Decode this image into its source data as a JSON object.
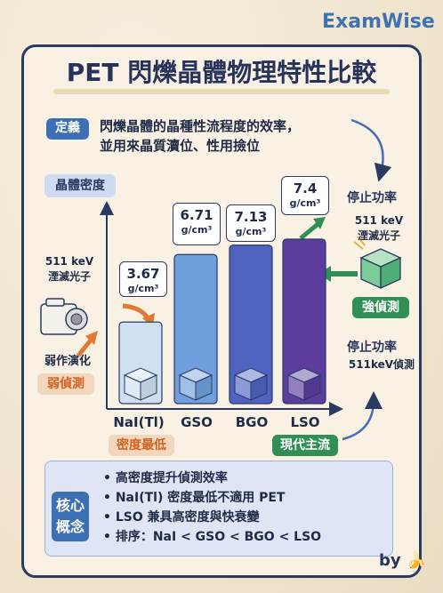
{
  "brand": "ExamWise",
  "title": "PET 閃爍晶體物理特性比較",
  "definition": {
    "tag": "定義",
    "line1": "閃爍晶體的晶種性流程度的效率，",
    "line2": "並用來晶質瀆位、性用撿位"
  },
  "axis_label": "晶體密度",
  "chart_data": {
    "type": "bar",
    "categories": [
      "NaI(Tl)",
      "GSO",
      "BGO",
      "LSO"
    ],
    "values": [
      3.67,
      6.71,
      7.13,
      7.4
    ],
    "unit": "g/cm³",
    "ylabel": "晶體密度",
    "colors": [
      "#cfe0f3",
      "#6f9fdc",
      "#4f63c0",
      "#5b3d9e"
    ]
  },
  "left_side": {
    "photon_line1": "511 keV",
    "photon_line2": "湮滅光子",
    "weak_text": "弱作演化",
    "weak_tag": "弱偵測"
  },
  "right_side": {
    "stop_power": "停止功率",
    "photon_line1": "511 keV",
    "photon_line2": "湮滅光子",
    "strong_tag": "強偵測",
    "stop_power2": "停止功率",
    "detect": "511keV偵測"
  },
  "bottom_tags": {
    "lowest": "密度最低",
    "mainstream": "現代主流"
  },
  "summary": {
    "tag_line1": "核心",
    "tag_line2": "概念",
    "items": [
      "高密度提升偵測效率",
      "NaI(Tl) 密度最低不適用 PET",
      "LSO 兼具高密度與快衰變",
      "排序：NaI < GSO < BGO < LSO"
    ]
  },
  "byline": "by",
  "byline_icon": "banana-icon",
  "colors": {
    "navy": "#27335a",
    "blue": "#3d6fb5",
    "orange": "#e07a33",
    "green": "#2f8f55"
  }
}
